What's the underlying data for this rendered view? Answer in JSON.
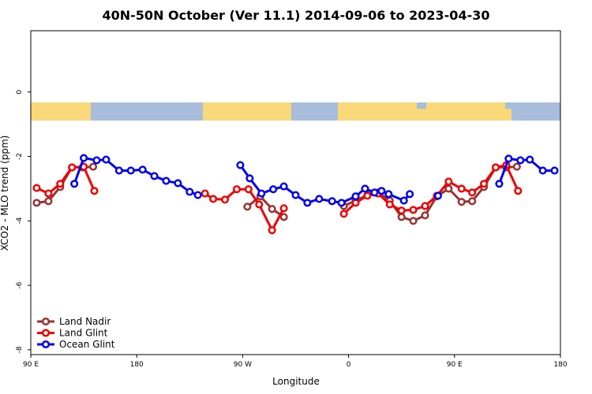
{
  "chart_data": {
    "type": "line",
    "title": "40N-50N October (Ver 11.1)   2014-09-06 to 2023-04-30",
    "x_label": "Longitude",
    "y_label": "XCO2 - MLO trend (ppm)",
    "xlim": [
      90,
      540
    ],
    "xticks": [
      {
        "value": 90,
        "label": "90 E"
      },
      180,
      {
        "value": 270,
        "label": "90 W"
      },
      {
        "value": 360,
        "label": "0"
      },
      {
        "value": 450,
        "label": "90 E"
      },
      {
        "value": 540,
        "label": "180"
      }
    ],
    "ylim": [
      -8.15,
      1.9
    ],
    "yticks": [
      0,
      -2,
      -4,
      -6,
      -8
    ],
    "legend": "bottom-left",
    "series": [
      {
        "name": "Land Nadir",
        "color": "#993333",
        "x": [
          95,
          105,
          115,
          125,
          134,
          143,
          null,
          274,
          285,
          295,
          305,
          null,
          356,
          366,
          376,
          385,
          395,
          405,
          415,
          425,
          435,
          445,
          456,
          465,
          475,
          485,
          494,
          503
        ],
        "values": [
          -3.44,
          -3.39,
          -2.95,
          -2.34,
          -2.34,
          -2.32,
          null,
          -3.56,
          -3.24,
          -3.63,
          -3.88,
          null,
          -3.54,
          -3.37,
          -3.2,
          -3.12,
          -3.37,
          -3.88,
          -4.0,
          -3.83,
          -3.24,
          -3.0,
          -3.41,
          -3.39,
          -2.95,
          -2.34,
          -2.34,
          -2.32
        ]
      },
      {
        "name": "Land Glint",
        "color": "#ee0000",
        "x": [
          95,
          105,
          115,
          125,
          135,
          144,
          null,
          238,
          245,
          255,
          265,
          275,
          284,
          295,
          305,
          null,
          356,
          366,
          376,
          385,
          395,
          405,
          415,
          425,
          435,
          445,
          456,
          465,
          475,
          485,
          494,
          504
        ],
        "values": [
          -2.98,
          -3.15,
          -2.85,
          -2.34,
          -2.32,
          -3.07,
          null,
          -3.15,
          -3.32,
          -3.34,
          -3.02,
          -3.02,
          -3.49,
          -4.29,
          -3.61,
          null,
          -3.78,
          -3.44,
          -3.22,
          -3.15,
          -3.49,
          -3.68,
          -3.66,
          -3.54,
          -3.22,
          -2.78,
          -3.0,
          -3.12,
          -2.85,
          -2.34,
          -2.27,
          -3.07
        ]
      },
      {
        "name": "Ocean Glint",
        "color": "#0000ee",
        "x": [
          127,
          135,
          146,
          154,
          165,
          175,
          185,
          195,
          205,
          215,
          225,
          232,
          null,
          268,
          276,
          286,
          296,
          305,
          315,
          325,
          335,
          346,
          354,
          366,
          374,
          382,
          388,
          394,
          407,
          412,
          null,
          436,
          null,
          488,
          496,
          506,
          514,
          525,
          535
        ],
        "values": [
          -2.85,
          -2.05,
          -2.12,
          -2.1,
          -2.44,
          -2.44,
          -2.41,
          -2.61,
          -2.76,
          -2.83,
          -3.1,
          -3.2,
          null,
          -2.27,
          -2.68,
          -3.15,
          -3.02,
          -2.93,
          -3.2,
          -3.44,
          -3.32,
          -3.39,
          -3.44,
          -3.24,
          -3.0,
          -3.12,
          -3.07,
          -3.17,
          -3.37,
          -3.17,
          null,
          -3.22,
          null,
          -2.85,
          -2.07,
          -2.12,
          -2.1,
          -2.44,
          -2.44
        ]
      }
    ]
  }
}
